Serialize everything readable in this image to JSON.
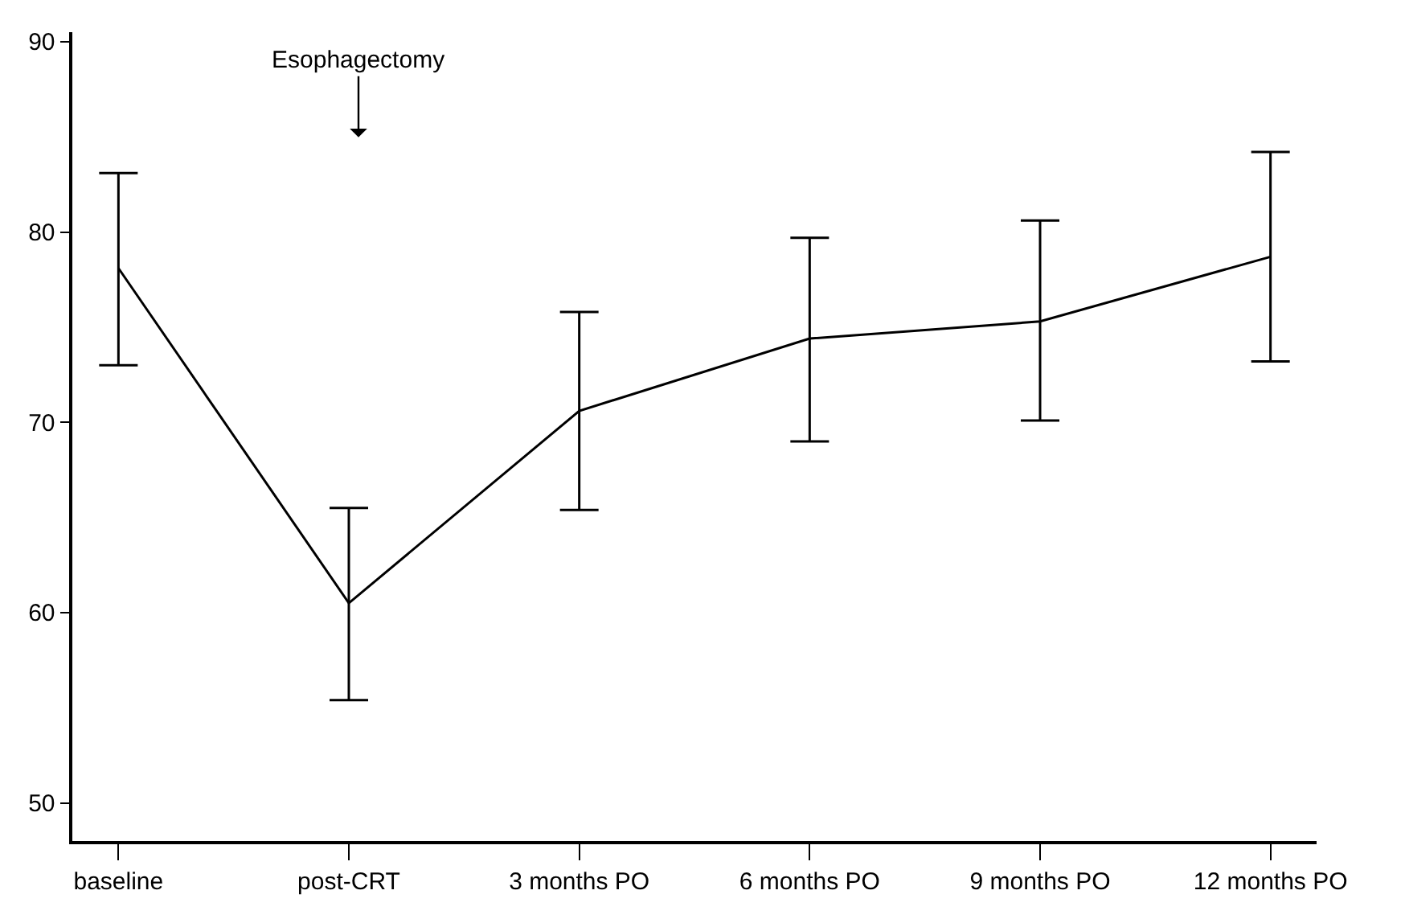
{
  "chart_data": {
    "type": "line",
    "categories": [
      "baseline",
      "post-CRT",
      "3 months PO",
      "6 months PO",
      "9 months PO",
      "12 months PO"
    ],
    "series": [
      {
        "color": "#000000",
        "values": [
          78.1,
          60.5,
          70.6,
          74.4,
          75.3,
          78.7
        ],
        "errors": [
          [
            73.0,
            83.1
          ],
          [
            55.4,
            65.5
          ],
          [
            65.4,
            75.8
          ],
          [
            69.0,
            79.7
          ],
          [
            70.1,
            80.6
          ],
          [
            73.2,
            84.2
          ]
        ]
      }
    ],
    "annotations": [
      "Esophagectomy"
    ],
    "ylim": [
      48,
      90.5
    ],
    "yticks": [
      50,
      60,
      70,
      80,
      90
    ],
    "marker": "none",
    "line_style": "solid"
  }
}
